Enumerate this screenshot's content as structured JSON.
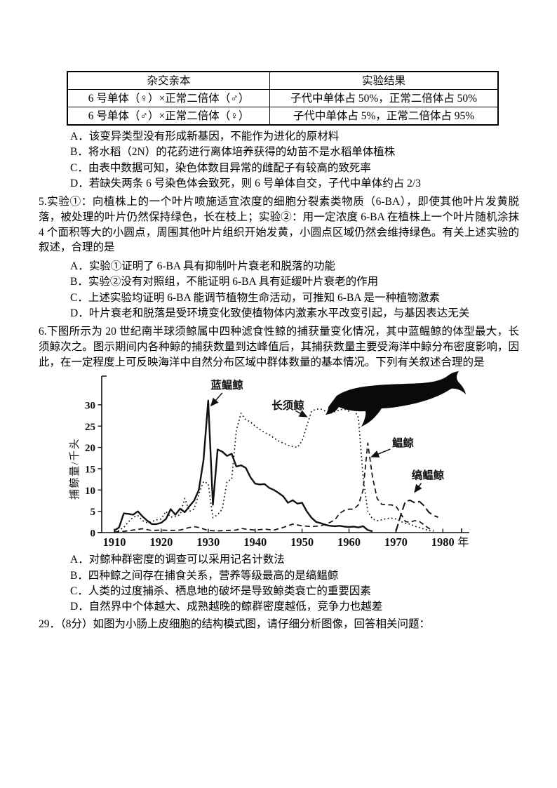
{
  "table": {
    "headers": [
      "杂交亲本",
      "实验结果"
    ],
    "rows": [
      [
        "6 号单体（♀）×正常二倍体（♂）",
        "子代中单体占 50%，正常二倍体占 50%"
      ],
      [
        "6 号单体（♂）×正常二倍体（♀）",
        "子代中单体占 5%，正常二倍体占 95%"
      ]
    ]
  },
  "q4": {
    "options": [
      "A．该变异类型没有形成新基因，不能作为进化的原材料",
      "B．将水稻（2N）的花药进行离体培养获得的幼苗不是水稻单体植株",
      "C．由表中数据可知，染色体数目异常的雌配子有较高的致死率",
      "D．若缺失两条 6 号染色体会致死，则 6 号单体自交，子代中单体约占 2/3"
    ]
  },
  "q5": {
    "text": "5.实验①：向植株上的一个叶片喷施适宜浓度的细胞分裂素类物质（6-BA），即使其他叶片发黄脱落，被处理的叶片仍然保持绿色，长在枝上；实验②：用一定浓度 6-BA 在植株上一个叶片随机涂抹 4 个面积等大的小圆点，周围其他叶片组织开始发黄，小圆点区域仍然会维持绿色。有关上述实验的叙述，合理的是",
    "options": [
      "A．实验①证明了 6-BA 具有抑制叶片衰老和脱落的功能",
      "B．实验②没有对照组，不能证明 6-BA 具有延缓叶片衰老的作用",
      "C．上述实验均证明 6-BA 能调节植物生命活动，可推知 6-BA 是一种植物激素",
      "D．叶片衰老和脱落是受环境变化致使植物体内激素水平改变引起，与基因表达无关"
    ]
  },
  "q6": {
    "text": "6.下图所示为 20 世纪南半球须鲸属中四种滤食性鲸的捕获量变化情况，其中蓝鳁鲸的体型最大，长须鲸次之。图示期间内各种鲸的捕获数量到达峰值后，其捕获数量主要受海洋中鲸分布密度影响，因此，在一定程度上可反映海洋中自然分布区域中群体数量的基本情况。下列有关叙述合理的是",
    "options": [
      "A．对鲸种群密度的调查可以采用记名计数法",
      "B．四种鲸之间存在捕食关系，营养等级最高的是缟鳁鲸",
      "C．人类的过度捕杀、栖息地的破坏是导致鲸类衰亡的重要因素",
      "D．自然界中个体越大、成熟越晚的鲸群密度越低，竞争力也越差"
    ]
  },
  "q29": {
    "text": "29．（8分）如图为小肠上皮细胞的结构模式图，请仔细分析图像，回答相关问题："
  },
  "chart_data": {
    "type": "line",
    "title": "",
    "ylabel": "捕鲸量/千头",
    "x_suffix": "年",
    "x_ticks": [
      1910,
      1920,
      1930,
      1940,
      1950,
      1960,
      1970,
      1980
    ],
    "y_ticks": [
      0,
      5,
      10,
      15,
      20,
      25,
      30
    ],
    "xlim": [
      1907,
      1985
    ],
    "ylim": [
      0,
      36
    ],
    "grid": false,
    "legend_position": "inline-annotations",
    "series": [
      {
        "id": "blue-whale",
        "name": "蓝鳁鲸",
        "style": "solid",
        "points": [
          [
            1910,
            0.5
          ],
          [
            1911,
            1.2
          ],
          [
            1912,
            4.5
          ],
          [
            1913,
            4.4
          ],
          [
            1914,
            4.2
          ],
          [
            1915,
            5
          ],
          [
            1916,
            3.8
          ],
          [
            1917,
            2.8
          ],
          [
            1918,
            2
          ],
          [
            1919,
            2
          ],
          [
            1920,
            2.3
          ],
          [
            1921,
            3.2
          ],
          [
            1922,
            5.5
          ],
          [
            1923,
            4.2
          ],
          [
            1924,
            5.6
          ],
          [
            1925,
            4.8
          ],
          [
            1926,
            6.2
          ],
          [
            1927,
            7.5
          ],
          [
            1928,
            10
          ],
          [
            1929,
            17
          ],
          [
            1930,
            31
          ],
          [
            1931,
            6.5
          ],
          [
            1932,
            19.5
          ],
          [
            1933,
            19
          ],
          [
            1934,
            18
          ],
          [
            1935,
            18.5
          ],
          [
            1936,
            15.5
          ],
          [
            1937,
            15.8
          ],
          [
            1938,
            15.2
          ],
          [
            1939,
            13
          ],
          [
            1940,
            11.5
          ],
          [
            1941,
            11.3
          ],
          [
            1942,
            11.4
          ],
          [
            1943,
            10.5
          ],
          [
            1944,
            10
          ],
          [
            1945,
            9.3
          ],
          [
            1946,
            8.5
          ],
          [
            1947,
            7
          ],
          [
            1948,
            7.6
          ],
          [
            1949,
            6.8
          ],
          [
            1950,
            7
          ],
          [
            1951,
            5
          ],
          [
            1952,
            3.5
          ],
          [
            1953,
            2.5
          ],
          [
            1954,
            2.2
          ],
          [
            1955,
            1.8
          ],
          [
            1956,
            1.6
          ],
          [
            1957,
            1.5
          ],
          [
            1958,
            1.6
          ],
          [
            1959,
            1.4
          ],
          [
            1960,
            1.3
          ],
          [
            1961,
            1.4
          ],
          [
            1962,
            1.2
          ],
          [
            1963,
            1.5
          ],
          [
            1964,
            0.6
          ],
          [
            1965,
            0.3
          ]
        ]
      },
      {
        "id": "fin-whale",
        "name": "长须鲸",
        "style": "dotted",
        "points": [
          [
            1910,
            0.2
          ],
          [
            1911,
            0.5
          ],
          [
            1912,
            1.2
          ],
          [
            1913,
            2.5
          ],
          [
            1914,
            3.6
          ],
          [
            1915,
            4
          ],
          [
            1916,
            2.8
          ],
          [
            1917,
            2.3
          ],
          [
            1918,
            2.6
          ],
          [
            1919,
            3
          ],
          [
            1920,
            3.2
          ],
          [
            1921,
            5
          ],
          [
            1922,
            3.6
          ],
          [
            1923,
            3.8
          ],
          [
            1924,
            4.2
          ],
          [
            1925,
            8
          ],
          [
            1926,
            5
          ],
          [
            1927,
            5.5
          ],
          [
            1928,
            9
          ],
          [
            1929,
            12
          ],
          [
            1930,
            11.5
          ],
          [
            1931,
            3.5
          ],
          [
            1932,
            4.2
          ],
          [
            1933,
            5.5
          ],
          [
            1934,
            12
          ],
          [
            1935,
            12.5
          ],
          [
            1936,
            24
          ],
          [
            1937,
            28
          ],
          [
            1938,
            26.5
          ],
          [
            1939,
            26
          ],
          [
            1940,
            25
          ],
          [
            1941,
            24.2
          ],
          [
            1942,
            23.5
          ],
          [
            1943,
            23
          ],
          [
            1944,
            22.2
          ],
          [
            1945,
            21.5
          ],
          [
            1946,
            21
          ],
          [
            1947,
            20.5
          ],
          [
            1948,
            20.2
          ],
          [
            1949,
            20
          ],
          [
            1950,
            21.5
          ],
          [
            1951,
            25
          ],
          [
            1952,
            28.5
          ],
          [
            1953,
            29
          ],
          [
            1954,
            29
          ],
          [
            1955,
            28.5
          ],
          [
            1956,
            28
          ],
          [
            1957,
            28.4
          ],
          [
            1958,
            28.8
          ],
          [
            1959,
            29
          ],
          [
            1960,
            28.5
          ],
          [
            1961,
            29
          ],
          [
            1962,
            27
          ],
          [
            1963,
            13
          ],
          [
            1964,
            5
          ],
          [
            1965,
            3.2
          ],
          [
            1966,
            2.8
          ],
          [
            1967,
            3
          ],
          [
            1968,
            3.3
          ],
          [
            1969,
            3.4
          ],
          [
            1970,
            3.2
          ],
          [
            1971,
            2.6
          ],
          [
            1972,
            2.2
          ],
          [
            1973,
            2
          ],
          [
            1974,
            1.5
          ],
          [
            1975,
            1.2
          ],
          [
            1976,
            0.8
          ],
          [
            1977,
            0.5
          ],
          [
            1978,
            0.3
          ]
        ]
      },
      {
        "id": "sei-whale",
        "name": "鳁鲸",
        "style": "dashed",
        "points": [
          [
            1910,
            0.1
          ],
          [
            1912,
            0.3
          ],
          [
            1914,
            0.6
          ],
          [
            1916,
            0.9
          ],
          [
            1918,
            0.5
          ],
          [
            1920,
            0.6
          ],
          [
            1922,
            0.5
          ],
          [
            1924,
            0.6
          ],
          [
            1926,
            1.2
          ],
          [
            1927,
            1.4
          ],
          [
            1928,
            1.2
          ],
          [
            1930,
            0.5
          ],
          [
            1932,
            0.4
          ],
          [
            1934,
            0.5
          ],
          [
            1936,
            0.6
          ],
          [
            1937,
            1
          ],
          [
            1938,
            0.8
          ],
          [
            1940,
            0.6
          ],
          [
            1942,
            0.8
          ],
          [
            1944,
            0.6
          ],
          [
            1946,
            1.2
          ],
          [
            1948,
            2
          ],
          [
            1950,
            1.6
          ],
          [
            1952,
            1.4
          ],
          [
            1954,
            1.6
          ],
          [
            1956,
            2.4
          ],
          [
            1957,
            3
          ],
          [
            1958,
            4.5
          ],
          [
            1959,
            5.2
          ],
          [
            1960,
            5.5
          ],
          [
            1961,
            5.5
          ],
          [
            1962,
            6.5
          ],
          [
            1963,
            10
          ],
          [
            1964,
            21
          ],
          [
            1965,
            13
          ],
          [
            1966,
            8
          ],
          [
            1967,
            6.6
          ],
          [
            1968,
            6.5
          ],
          [
            1969,
            6.5
          ],
          [
            1970,
            6.2
          ],
          [
            1971,
            4.5
          ],
          [
            1972,
            2.6
          ],
          [
            1973,
            2.4
          ],
          [
            1974,
            2.8
          ],
          [
            1975,
            2.6
          ],
          [
            1976,
            1.8
          ],
          [
            1977,
            1
          ],
          [
            1978,
            0.5
          ]
        ]
      },
      {
        "id": "minke-whale",
        "name": "缟鳁鲸",
        "style": "longdash",
        "points": [
          [
            1970,
            0.3
          ],
          [
            1971,
            4
          ],
          [
            1972,
            7.3
          ],
          [
            1973,
            7.6
          ],
          [
            1974,
            7
          ],
          [
            1975,
            7.3
          ],
          [
            1976,
            6.3
          ],
          [
            1977,
            4.8
          ],
          [
            1978,
            4
          ],
          [
            1979,
            3.6
          ]
        ]
      }
    ],
    "annotations": [
      {
        "id": "blue-whale",
        "label": "蓝鳁鲸",
        "lx": 1934,
        "ly": 34.6,
        "ax": 1933,
        "ay": 32.8,
        "tx": 1930.6,
        "ty": 29.8
      },
      {
        "id": "fin-whale",
        "label": "长须鲸",
        "lx": 1947,
        "ly": 29.8,
        "ax": 1948.6,
        "ay": 28.6,
        "tx": 1951,
        "ty": 27.2
      },
      {
        "id": "sei-whale",
        "label": "鳁鲸",
        "lx": 1971.5,
        "ly": 21,
        "ax": 1968.8,
        "ay": 19.6,
        "tx": 1964.8,
        "ty": 17.8
      },
      {
        "id": "minke-whale",
        "label": "缟鳁鲸",
        "lx": 1976.8,
        "ly": 13.4,
        "ax": 1975.4,
        "ay": 11.6,
        "tx": 1974,
        "ty": 9.5
      }
    ]
  }
}
